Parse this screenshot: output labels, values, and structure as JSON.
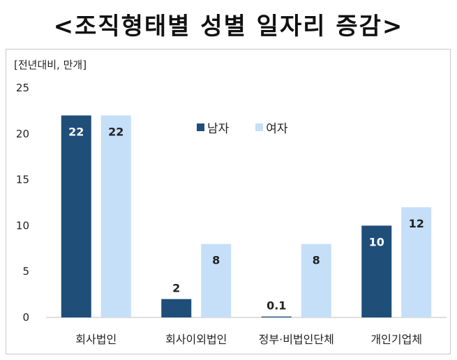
{
  "title": "<조직형태별 성별 일자리 증감>",
  "unit_label": "[전년대비, 만개]",
  "colors": {
    "male": "#1f4e79",
    "female": "#c5dff8",
    "axis": "#bfbfbf"
  },
  "chart_data": {
    "type": "bar",
    "title": "<조직형태별 성별 일자리 증감>",
    "ylabel": "[전년대비, 만개]",
    "ylim": [
      0,
      25
    ],
    "yticks": [
      0,
      5,
      10,
      15,
      20,
      25
    ],
    "categories": [
      "회사법인",
      "회사이외법인",
      "정부·비법인단체",
      "개인기업체"
    ],
    "series": [
      {
        "name": "남자",
        "values": [
          22,
          2,
          0.1,
          10
        ],
        "labels": [
          "22",
          "2",
          "0.1",
          "10"
        ]
      },
      {
        "name": "여자",
        "values": [
          22,
          8,
          8,
          12
        ],
        "labels": [
          "22",
          "8",
          "8",
          "12"
        ]
      }
    ],
    "legend": "top-center",
    "grid": false
  }
}
